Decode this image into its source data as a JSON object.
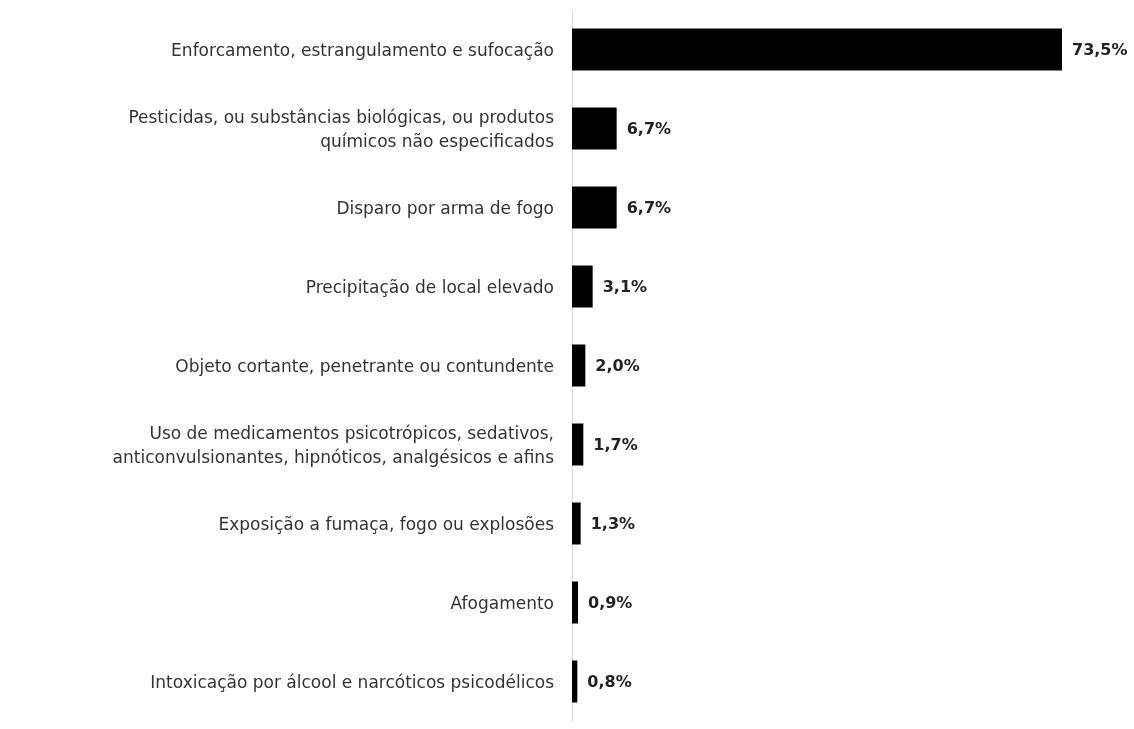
{
  "chart_data": {
    "type": "bar",
    "orientation": "horizontal",
    "categories": [
      "Enforcamento, estrangulamento e sufocação",
      "Pesticidas, ou substâncias biológicas, ou produtos\nquímicos não especificados",
      "Disparo por arma de fogo",
      "Precipitação de local elevado",
      "Objeto cortante, penetrante ou contundente",
      "Uso de medicamentos psicotrópicos, sedativos,\nanticonvulsionantes, hipnóticos, analgésicos e afins",
      "Exposição a fumaça, fogo ou explosões",
      "Afogamento",
      "Intoxicação por álcool e narcóticos psicodélicos"
    ],
    "values": [
      73.5,
      6.7,
      6.7,
      3.1,
      2.0,
      1.7,
      1.3,
      0.9,
      0.8
    ],
    "value_labels": [
      "73,5%",
      "6,7%",
      "6,7%",
      "3,1%",
      "2,0%",
      "1,7%",
      "1,3%",
      "0,9%",
      "0,8%"
    ],
    "color": "#000000",
    "grid": false
  }
}
